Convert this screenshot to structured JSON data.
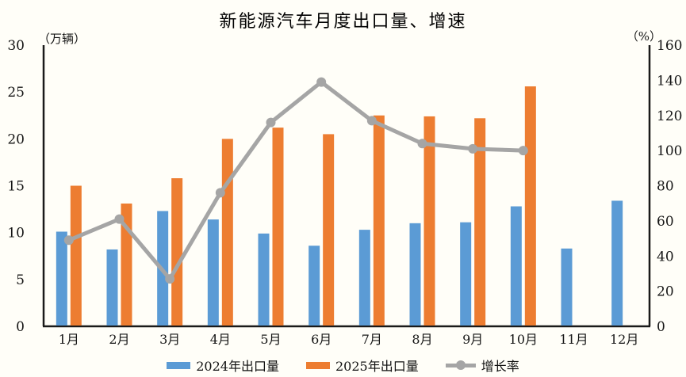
{
  "chart_data": {
    "type": "bar",
    "title": "新能源汽车月度出口量、增速",
    "categories": [
      "1月",
      "2月",
      "3月",
      "4月",
      "5月",
      "6月",
      "7月",
      "8月",
      "9月",
      "10月",
      "11月",
      "12月"
    ],
    "series": [
      {
        "name": "2024年出口量",
        "kind": "bar",
        "axis": "left",
        "color": "#5B9BD5",
        "values": [
          10.1,
          8.2,
          12.3,
          11.4,
          9.9,
          8.6,
          10.3,
          11.0,
          11.1,
          12.8,
          8.3,
          13.4
        ]
      },
      {
        "name": "2025年出口量",
        "kind": "bar",
        "axis": "left",
        "color": "#ED7D31",
        "values": [
          15.0,
          13.1,
          15.8,
          20.0,
          21.2,
          20.5,
          22.5,
          22.4,
          22.2,
          25.6,
          null,
          null
        ]
      },
      {
        "name": "增长率",
        "kind": "line",
        "axis": "right",
        "color": "#A5A5A5",
        "values": [
          49,
          61,
          27,
          76,
          116,
          139,
          117,
          104,
          101,
          100,
          null,
          null
        ]
      }
    ],
    "left_axis": {
      "unit": "（万辆）",
      "min": 0,
      "max": 30,
      "step": 5
    },
    "right_axis": {
      "unit": "（%）",
      "min": 0,
      "max": 160,
      "step": 20
    },
    "grid": false,
    "legend_position": "bottom",
    "axis_color": "#1a1a1a"
  }
}
